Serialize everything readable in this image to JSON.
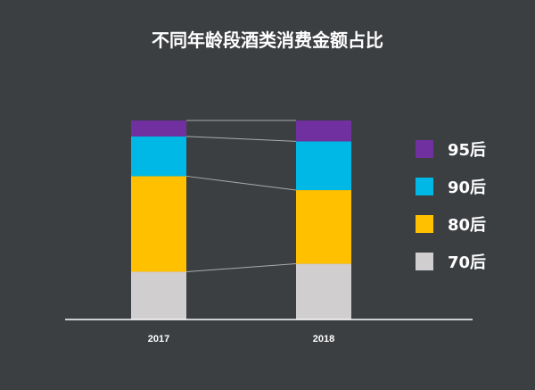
{
  "chart_data": {
    "type": "bar",
    "stacked": true,
    "title": "不同年龄段酒类消费金额占比",
    "xlabel": "",
    "ylabel": "",
    "ylim": [
      0,
      100
    ],
    "categories": [
      "2017",
      "2018"
    ],
    "series": [
      {
        "name": "70后",
        "color": "#d0cecf",
        "values": [
          24,
          28
        ]
      },
      {
        "name": "80后",
        "color": "#ffc000",
        "values": [
          48,
          37
        ]
      },
      {
        "name": "90后",
        "color": "#00b8e6",
        "values": [
          20,
          24.5
        ]
      },
      {
        "name": "95后",
        "color": "#7030a0",
        "values": [
          8,
          10.5
        ]
      }
    ],
    "legend": {
      "position": "right",
      "order": [
        "95后",
        "90后",
        "80后",
        "70后"
      ]
    },
    "connector_lines": true
  }
}
